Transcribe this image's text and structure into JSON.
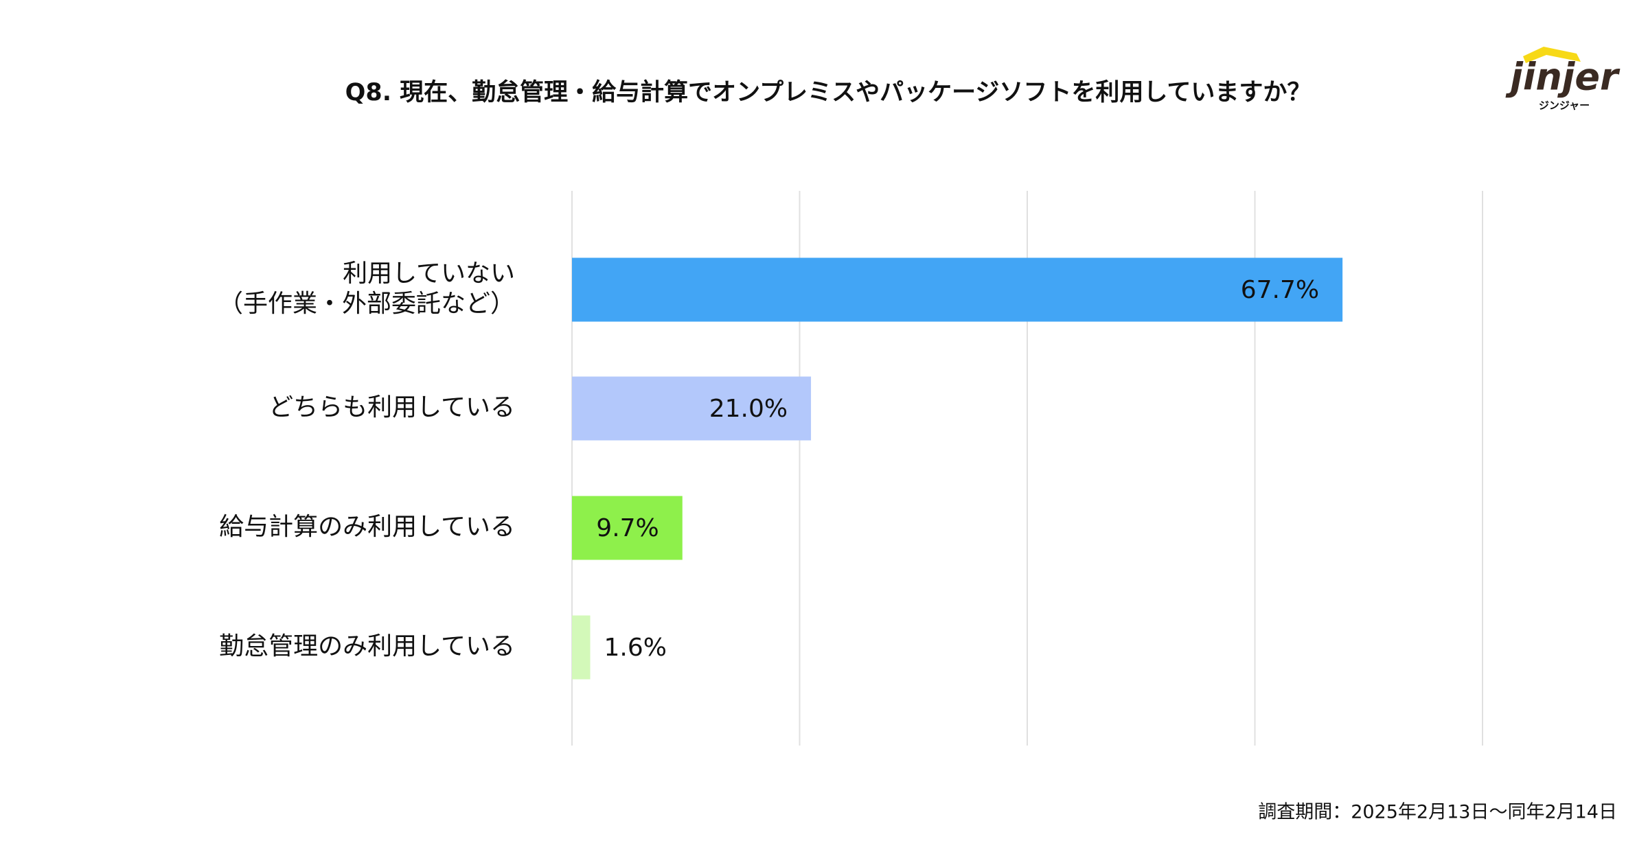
{
  "chart_data": {
    "type": "barh",
    "title": "Q8. 現在、勤怠管理・給与計算でオンプレミスやパッケージソフトを利用していますか？",
    "categories": [
      "利用していない\n（手作業・外部委託など）",
      "どちらも利用している",
      "給与計算のみ利用している",
      "勤怠管理のみ利用している"
    ],
    "values": [
      67.7,
      21.0,
      9.7,
      1.6
    ],
    "value_labels": [
      "67.7%",
      "21.0%",
      "9.7%",
      "1.6%"
    ],
    "colors": [
      "#42a5f5",
      "#b3c8fb",
      "#8ef04b",
      "#d3f9b9"
    ],
    "xlim": [
      0,
      80
    ],
    "xticks": [
      0,
      20,
      40,
      60,
      80
    ],
    "grid": true,
    "note": "調査期間：2025年2月13日〜同年2月14日"
  },
  "logo": {
    "name": "jinjer",
    "kana": "ジンジャー"
  }
}
